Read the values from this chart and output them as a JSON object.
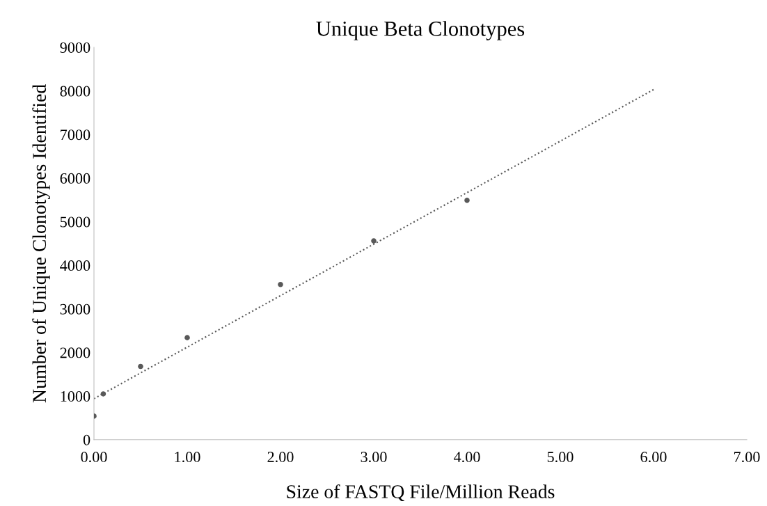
{
  "chart_data": {
    "type": "scatter",
    "title": "Unique Beta Clonotypes",
    "xlabel": "Size of FASTQ File/Million Reads",
    "ylabel": "Number of Unique Clonotypes Identified",
    "series": [
      {
        "color": "#595959",
        "marker": "circle",
        "x": [
          0,
          0.1,
          0.5,
          1,
          2,
          3,
          4
        ],
        "values": [
          540,
          1050,
          1680,
          2340,
          3560,
          4560,
          5490
        ]
      },
      {
        "type": "line",
        "color": "#595959",
        "line_style": "dotted",
        "marker": "none",
        "x": [
          0,
          6
        ],
        "values": [
          940,
          8030
        ]
      }
    ],
    "xlim": [
      0,
      7
    ],
    "xticks": [
      {
        "value": 0,
        "label": "0.00"
      },
      {
        "value": 1,
        "label": "1.00"
      },
      {
        "value": 2,
        "label": "2.00"
      },
      {
        "value": 3,
        "label": "3.00"
      },
      {
        "value": 4,
        "label": "4.00"
      },
      {
        "value": 5,
        "label": "5.00"
      },
      {
        "value": 6,
        "label": "6.00"
      },
      {
        "value": 7,
        "label": "7.00"
      }
    ],
    "ylim": [
      0,
      9000
    ],
    "yticks": [
      0,
      1000,
      2000,
      3000,
      4000,
      5000,
      6000,
      7000,
      8000,
      9000
    ],
    "grid": false,
    "legend": false
  }
}
